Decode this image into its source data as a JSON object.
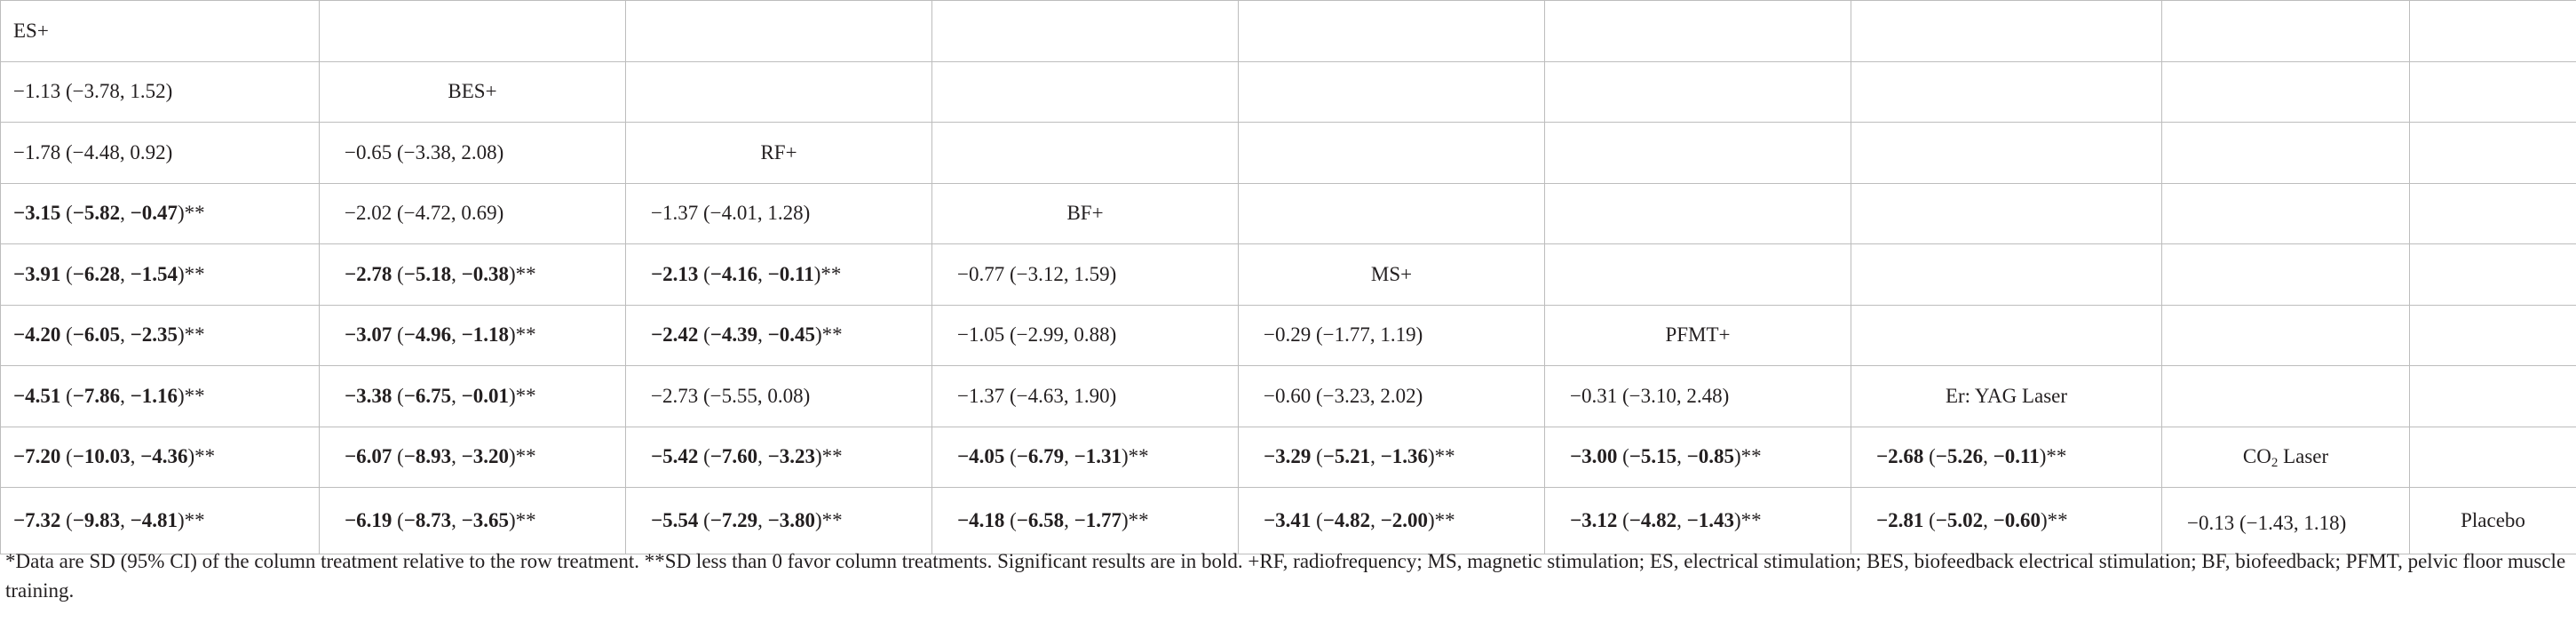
{
  "table": {
    "rows": [
      [
        {
          "lbl": "ES+"
        },
        {},
        {},
        {},
        {},
        {},
        {},
        {},
        {}
      ],
      [
        {
          "v": "−1.13 (−3.78, 1.52)"
        },
        {
          "lbl": "BES+"
        },
        {},
        {},
        {},
        {},
        {},
        {},
        {}
      ],
      [
        {
          "v": "−1.78 (−4.48, 0.92)"
        },
        {
          "v": "−0.65 (−3.38, 2.08)"
        },
        {
          "lbl": "RF+"
        },
        {},
        {},
        {},
        {},
        {},
        {}
      ],
      [
        {
          "sig": true,
          "est": "−3.15",
          "lo": "−5.82",
          "hi": "−0.47"
        },
        {
          "v": "−2.02 (−4.72, 0.69)"
        },
        {
          "v": "−1.37 (−4.01, 1.28)"
        },
        {
          "lbl": "BF+"
        },
        {},
        {},
        {},
        {},
        {}
      ],
      [
        {
          "sig": true,
          "est": "−3.91",
          "lo": "−6.28",
          "hi": "−1.54"
        },
        {
          "sig": true,
          "est": "−2.78",
          "lo": "−5.18",
          "hi": "−0.38"
        },
        {
          "sig": true,
          "est": "−2.13",
          "lo": "−4.16",
          "hi": "−0.11"
        },
        {
          "v": "−0.77 (−3.12, 1.59)"
        },
        {
          "lbl": "MS+"
        },
        {},
        {},
        {},
        {}
      ],
      [
        {
          "sig": true,
          "est": "−4.20",
          "lo": "−6.05",
          "hi": "−2.35"
        },
        {
          "sig": true,
          "est": "−3.07",
          "lo": "−4.96",
          "hi": "−1.18"
        },
        {
          "sig": true,
          "est": "−2.42",
          "lo": "−4.39",
          "hi": "−0.45"
        },
        {
          "v": "−1.05 (−2.99, 0.88)"
        },
        {
          "v": "−0.29 (−1.77, 1.19)"
        },
        {
          "lbl": "PFMT+"
        },
        {},
        {},
        {}
      ],
      [
        {
          "sig": true,
          "est": "−4.51",
          "lo": "−7.86",
          "hi": "−1.16"
        },
        {
          "sig": true,
          "est": "−3.38",
          "lo": "−6.75",
          "hi": "−0.01"
        },
        {
          "v": "−2.73 (−5.55, 0.08)"
        },
        {
          "v": "−1.37 (−4.63, 1.90)"
        },
        {
          "v": "−0.60 (−3.23, 2.02)"
        },
        {
          "v": "−0.31 (−3.10, 2.48)"
        },
        {
          "lbl": "Er: YAG Laser"
        },
        {},
        {}
      ],
      [
        {
          "sig": true,
          "est": "−7.20",
          "lo": "−10.03",
          "hi": "−4.36"
        },
        {
          "sig": true,
          "est": "−6.07",
          "lo": "−8.93",
          "hi": "−3.20"
        },
        {
          "sig": true,
          "est": "−5.42",
          "lo": "−7.60",
          "hi": "−3.23"
        },
        {
          "sig": true,
          "est": "−4.05",
          "lo": "−6.79",
          "hi": "−1.31"
        },
        {
          "sig": true,
          "est": "−3.29",
          "lo": "−5.21",
          "hi": "−1.36"
        },
        {
          "sig": true,
          "est": "−3.00",
          "lo": "−5.15",
          "hi": "−0.85"
        },
        {
          "sig": true,
          "est": "−2.68",
          "lo": "−5.26",
          "hi": "−0.11"
        },
        {
          "lbl": "CO",
          "sub": "2",
          "after": " Laser"
        },
        {}
      ],
      [
        {
          "sig": true,
          "est": "−7.32",
          "lo": "−9.83",
          "hi": "−4.81"
        },
        {
          "sig": true,
          "est": "−6.19",
          "lo": "−8.73",
          "hi": "−3.65"
        },
        {
          "sig": true,
          "est": "−5.54",
          "lo": "−7.29",
          "hi": "−3.80"
        },
        {
          "sig": true,
          "est": "−4.18",
          "lo": "−6.58",
          "hi": "−1.77"
        },
        {
          "sig": true,
          "est": "−3.41",
          "lo": "−4.82",
          "hi": "−2.00"
        },
        {
          "sig": true,
          "est": "−3.12",
          "lo": "−4.82",
          "hi": "−1.43"
        },
        {
          "sig": true,
          "est": "−2.81",
          "lo": "−5.02",
          "hi": "−0.60"
        },
        {
          "v": "−0.13 (−1.43, 1.18)",
          "wrap": true
        },
        {
          "lbl": "Placebo"
        }
      ]
    ]
  },
  "footnote": "*Data are SD (95% CI) of the column treatment relative to the row treatment. **SD less than 0 favor column treatments. Significant results are in bold. +RF, radiofrequency; MS, magnetic stimulation; ES, electrical stimulation; BES, biofeedback electrical stimulation; BF, biofeedback; PFMT, pelvic floor muscle training."
}
